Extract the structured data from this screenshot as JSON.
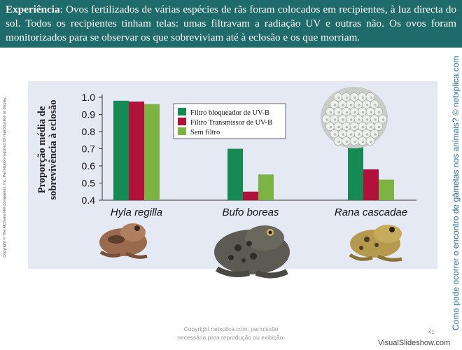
{
  "header": {
    "lead": "Experiência",
    "text": ": Ovos fertilizados de várias espécies de rãs foram colocados em recipientes, à luz directa do sol. Todos os recipientes tinham telas: umas filtravam a radiação UV e outras não. Os ovos foram monitorizados para se observar os que sobreviviam até à eclosão e os que morriam."
  },
  "side_copyright": "Copyright © The McGraw-Hill Companies, Inc. Permission required for reproduction or display.",
  "side_question": "Como pode ocorrer o encontro de gâmetas nos animais? © netxplica.com",
  "footer": {
    "line1": "Copyright netxplica.com: permissão",
    "line2": "necessária para reprodução ou exibição.",
    "page": "41",
    "brand": "VisualSlideshow.com"
  },
  "colors": {
    "header_bg": "#1f6b6b",
    "panel_bg": "#e4e9f4",
    "filtro_bloqueador": "#158a55",
    "filtro_transmissor": "#b0123c",
    "sem_filtro": "#7cb342"
  },
  "chart_data": {
    "type": "bar",
    "ylabel_line1": "Proporção média de",
    "ylabel_line2": "sobrevivência à eclosão",
    "ylim": [
      0.4,
      1.0
    ],
    "yticks": [
      "0.4",
      "0.5",
      "0.6",
      "0.7",
      "0.8",
      "0.9",
      "1.0"
    ],
    "categories": [
      "Hyla regilla",
      "Bufo boreas",
      "Rana cascadae"
    ],
    "series": [
      {
        "name": "Filtro bloqueador de UV-B",
        "values": [
          0.98,
          0.7,
          0.8
        ]
      },
      {
        "name": "Filtro Transmissor de UV-B",
        "values": [
          0.975,
          0.45,
          0.58
        ]
      },
      {
        "name": "Sem filtro",
        "values": [
          0.96,
          0.55,
          0.52
        ]
      }
    ],
    "legend_position": "top-center",
    "grid": false
  }
}
